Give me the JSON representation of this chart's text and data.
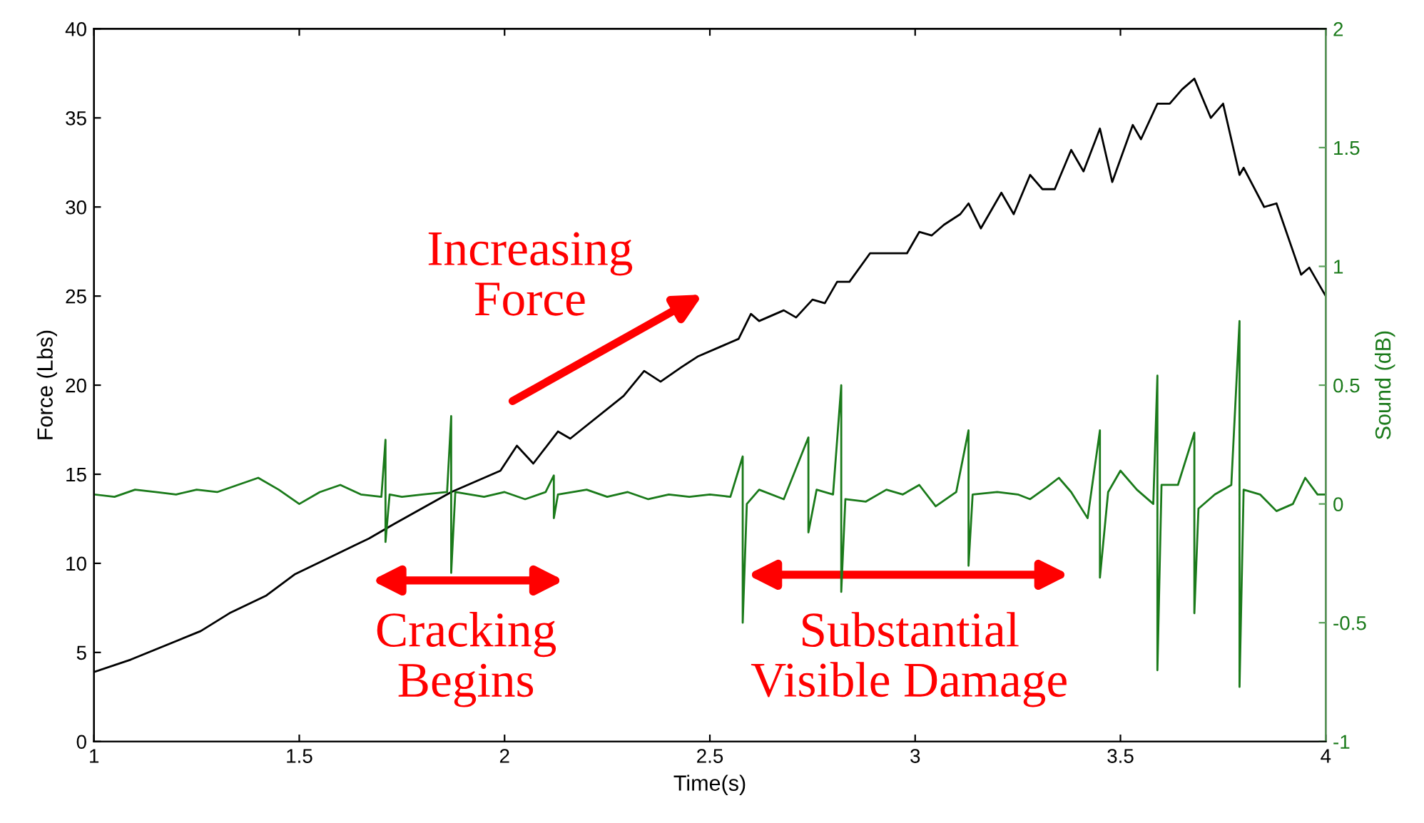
{
  "chart_data": {
    "type": "line",
    "xlabel": "Time(s)",
    "ylabel": "Force (Lbs)",
    "y2label": "Sound (dB)",
    "xlim": [
      1,
      4
    ],
    "xticks": [
      1,
      1.5,
      2,
      2.5,
      3,
      3.5,
      4
    ],
    "ylim": [
      0,
      40
    ],
    "yticks": [
      0,
      5,
      10,
      15,
      20,
      25,
      30,
      35,
      40
    ],
    "y2lim": [
      -1,
      2
    ],
    "y2ticks": [
      -1,
      -0.5,
      0,
      0.5,
      1,
      1.5,
      2
    ],
    "grid": false,
    "legend": false,
    "marker": "none",
    "line_style": "solid",
    "series": [
      {
        "color": "#000000",
        "axis": "y",
        "x": [
          1.0,
          1.09,
          1.26,
          1.33,
          1.42,
          1.49,
          1.58,
          1.67,
          1.73,
          1.87,
          1.99,
          2.03,
          2.07,
          2.13,
          2.16,
          2.29,
          2.34,
          2.38,
          2.43,
          2.47,
          2.57,
          2.6,
          2.62,
          2.68,
          2.71,
          2.75,
          2.78,
          2.81,
          2.84,
          2.89,
          2.94,
          2.98,
          3.01,
          3.04,
          3.07,
          3.11,
          3.13,
          3.16,
          3.21,
          3.24,
          3.28,
          3.31,
          3.34,
          3.38,
          3.41,
          3.45,
          3.48,
          3.53,
          3.55,
          3.59,
          3.62,
          3.65,
          3.68,
          3.72,
          3.75,
          3.79,
          3.8,
          3.85,
          3.88,
          3.94,
          3.96,
          4.0
        ],
        "values": [
          3.9,
          4.6,
          6.2,
          7.2,
          8.2,
          9.4,
          10.4,
          11.4,
          12.2,
          14,
          15.2,
          16.6,
          15.6,
          17.4,
          17,
          19.4,
          20.8,
          20.2,
          21,
          21.6,
          22.6,
          24,
          23.6,
          24.2,
          23.8,
          24.8,
          24.6,
          25.8,
          25.8,
          27.4,
          27.4,
          27.4,
          28.6,
          28.4,
          29,
          29.6,
          30.2,
          28.8,
          30.8,
          29.6,
          31.8,
          31,
          31,
          33.2,
          32,
          34.4,
          31.4,
          34.6,
          33.8,
          35.8,
          35.8,
          36.6,
          37.2,
          35,
          35.8,
          31.8,
          32.2,
          30,
          30.2,
          26.2,
          26.6,
          25
        ]
      },
      {
        "color": "#1a7a1a",
        "axis": "y2",
        "x": [
          1.0,
          1.05,
          1.1,
          1.15,
          1.2,
          1.25,
          1.3,
          1.35,
          1.4,
          1.45,
          1.5,
          1.55,
          1.6,
          1.65,
          1.7,
          1.71,
          1.71,
          1.72,
          1.75,
          1.8,
          1.86,
          1.87,
          1.87,
          1.88,
          1.95,
          2.0,
          2.05,
          2.1,
          2.12,
          2.12,
          2.13,
          2.2,
          2.25,
          2.3,
          2.35,
          2.4,
          2.45,
          2.5,
          2.55,
          2.58,
          2.58,
          2.59,
          2.62,
          2.68,
          2.74,
          2.74,
          2.76,
          2.8,
          2.82,
          2.82,
          2.83,
          2.88,
          2.93,
          2.97,
          3.01,
          3.05,
          3.1,
          3.13,
          3.13,
          3.14,
          3.2,
          3.25,
          3.28,
          3.32,
          3.35,
          3.38,
          3.42,
          3.45,
          3.45,
          3.47,
          3.5,
          3.54,
          3.58,
          3.59,
          3.59,
          3.6,
          3.64,
          3.68,
          3.68,
          3.69,
          3.73,
          3.77,
          3.79,
          3.79,
          3.8,
          3.84,
          3.88,
          3.92,
          3.95,
          3.98,
          4.0
        ],
        "values": [
          0.04,
          0.03,
          0.06,
          0.05,
          0.04,
          0.06,
          0.05,
          0.08,
          0.11,
          0.06,
          0.0,
          0.05,
          0.08,
          0.04,
          0.03,
          0.27,
          -0.16,
          0.04,
          0.03,
          0.04,
          0.05,
          0.37,
          -0.29,
          0.05,
          0.03,
          0.05,
          0.02,
          0.05,
          0.12,
          -0.06,
          0.04,
          0.06,
          0.03,
          0.05,
          0.02,
          0.04,
          0.03,
          0.04,
          0.03,
          0.2,
          -0.5,
          0.0,
          0.06,
          0.02,
          0.28,
          -0.12,
          0.06,
          0.04,
          0.5,
          -0.37,
          0.02,
          0.01,
          0.06,
          0.04,
          0.08,
          -0.01,
          0.05,
          0.31,
          -0.26,
          0.04,
          0.05,
          0.04,
          0.02,
          0.07,
          0.11,
          0.05,
          -0.06,
          0.31,
          -0.31,
          0.05,
          0.14,
          0.06,
          0.0,
          0.54,
          -0.7,
          0.08,
          0.08,
          0.3,
          -0.46,
          -0.02,
          0.04,
          0.08,
          0.77,
          -0.77,
          0.06,
          0.04,
          -0.03,
          0.0,
          0.11,
          0.04,
          0.04
        ]
      }
    ],
    "annotations": [
      "Increasing\nForce",
      "Cracking\nBegins",
      "Substantial\nVisible Damage"
    ]
  }
}
